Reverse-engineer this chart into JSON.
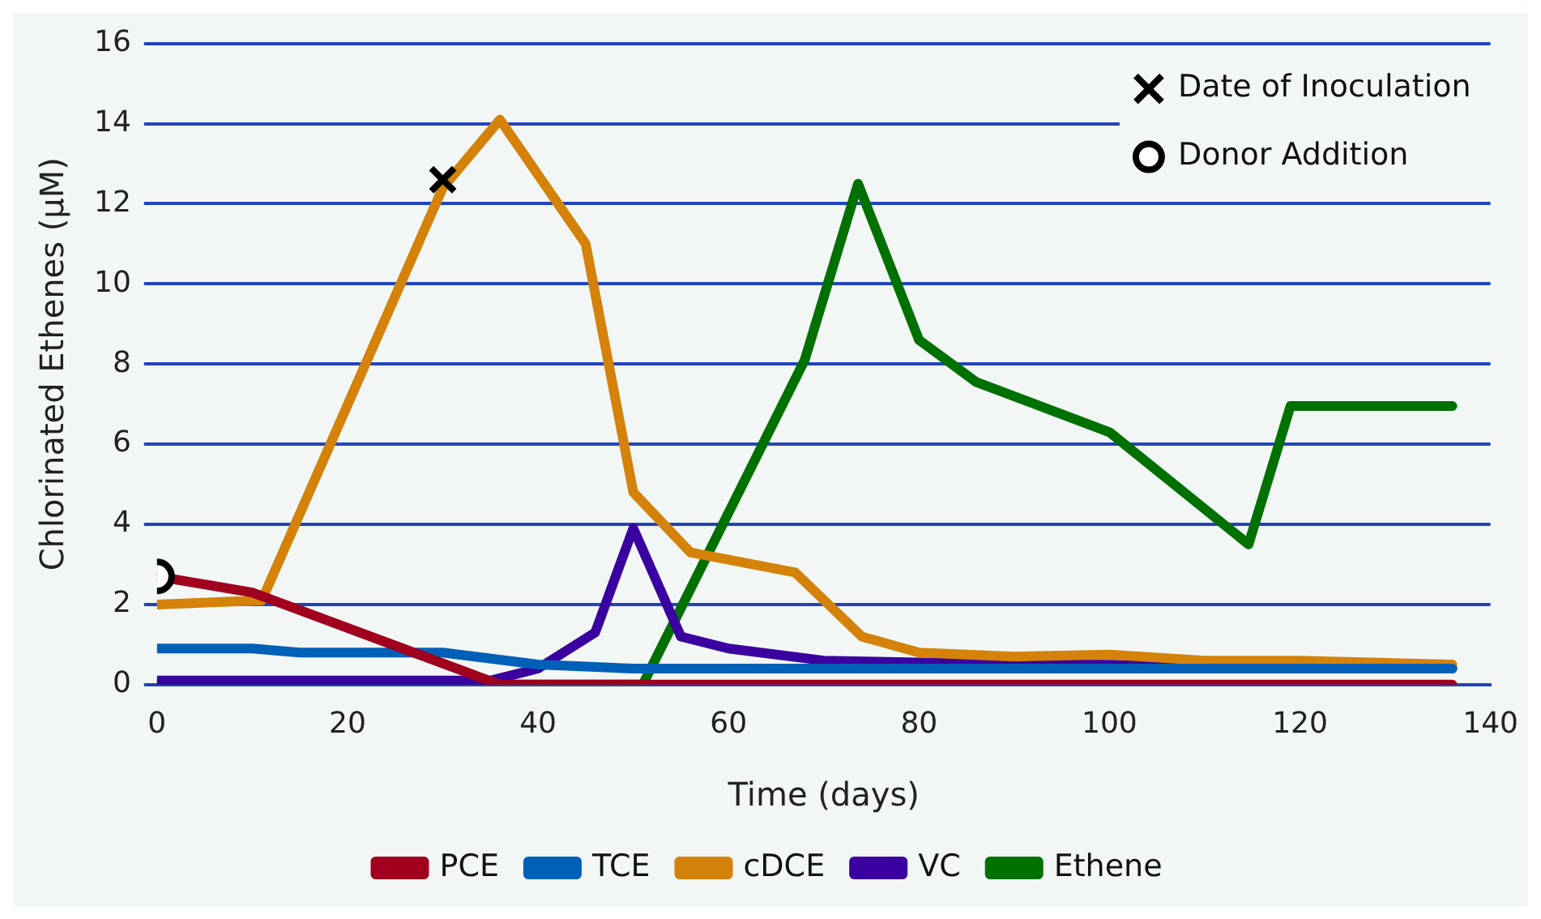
{
  "chart_data": {
    "type": "line",
    "xlabel": "Time (days)",
    "ylabel": "Chlorinated Ethenes (µM)",
    "xlim": [
      0,
      140
    ],
    "xticks": [
      0,
      20,
      40,
      60,
      80,
      100,
      120,
      140
    ],
    "ylim": [
      0,
      16
    ],
    "yticks": [
      0,
      2,
      4,
      6,
      8,
      10,
      12,
      14,
      16
    ],
    "grid": "y",
    "legend": "bottom",
    "line_style": "solid",
    "marker": "none",
    "series": [
      {
        "name": "PCE",
        "color": "#a0001e",
        "x": [
          0,
          10,
          36,
          136
        ],
        "values": [
          2.7,
          2.3,
          0,
          0
        ]
      },
      {
        "name": "TCE",
        "color": "#0060b8",
        "x": [
          0,
          10,
          15,
          30,
          40,
          50,
          136
        ],
        "values": [
          0.9,
          0.9,
          0.8,
          0.8,
          0.5,
          0.4,
          0.4
        ]
      },
      {
        "name": "cDCE",
        "color": "#d4820a",
        "x": [
          0,
          11,
          30,
          36,
          45,
          50,
          56,
          67,
          74,
          80,
          90,
          100,
          110,
          120,
          136
        ],
        "values": [
          2,
          2.1,
          12.4,
          14.1,
          11,
          4.8,
          3.3,
          2.8,
          1.2,
          0.8,
          0.7,
          0.75,
          0.6,
          0.6,
          0.5
        ]
      },
      {
        "name": "VC",
        "color": "#3a00a0",
        "x": [
          0,
          35,
          40,
          46,
          50,
          55,
          60,
          70,
          80,
          136
        ],
        "values": [
          0.1,
          0.1,
          0.4,
          1.3,
          3.9,
          1.2,
          0.9,
          0.6,
          0.55,
          0.4
        ]
      },
      {
        "name": "Ethene",
        "color": "#007000",
        "x": [
          0,
          51,
          68,
          73.6,
          80,
          86,
          100,
          114.6,
          119,
          136
        ],
        "values": [
          0,
          0,
          8.1,
          12.5,
          8.6,
          7.55,
          6.3,
          3.5,
          6.95,
          6.95
        ]
      },
      {
        "name": "Date of Inoculation",
        "type": "scatter",
        "marker": "cross",
        "color": "#000000",
        "x": [
          30
        ],
        "values": [
          12.6
        ]
      },
      {
        "name": "Donor Addition",
        "type": "scatter",
        "marker": "circle",
        "color": "#000000",
        "x": [
          0
        ],
        "values": [
          2.7
        ]
      }
    ]
  }
}
